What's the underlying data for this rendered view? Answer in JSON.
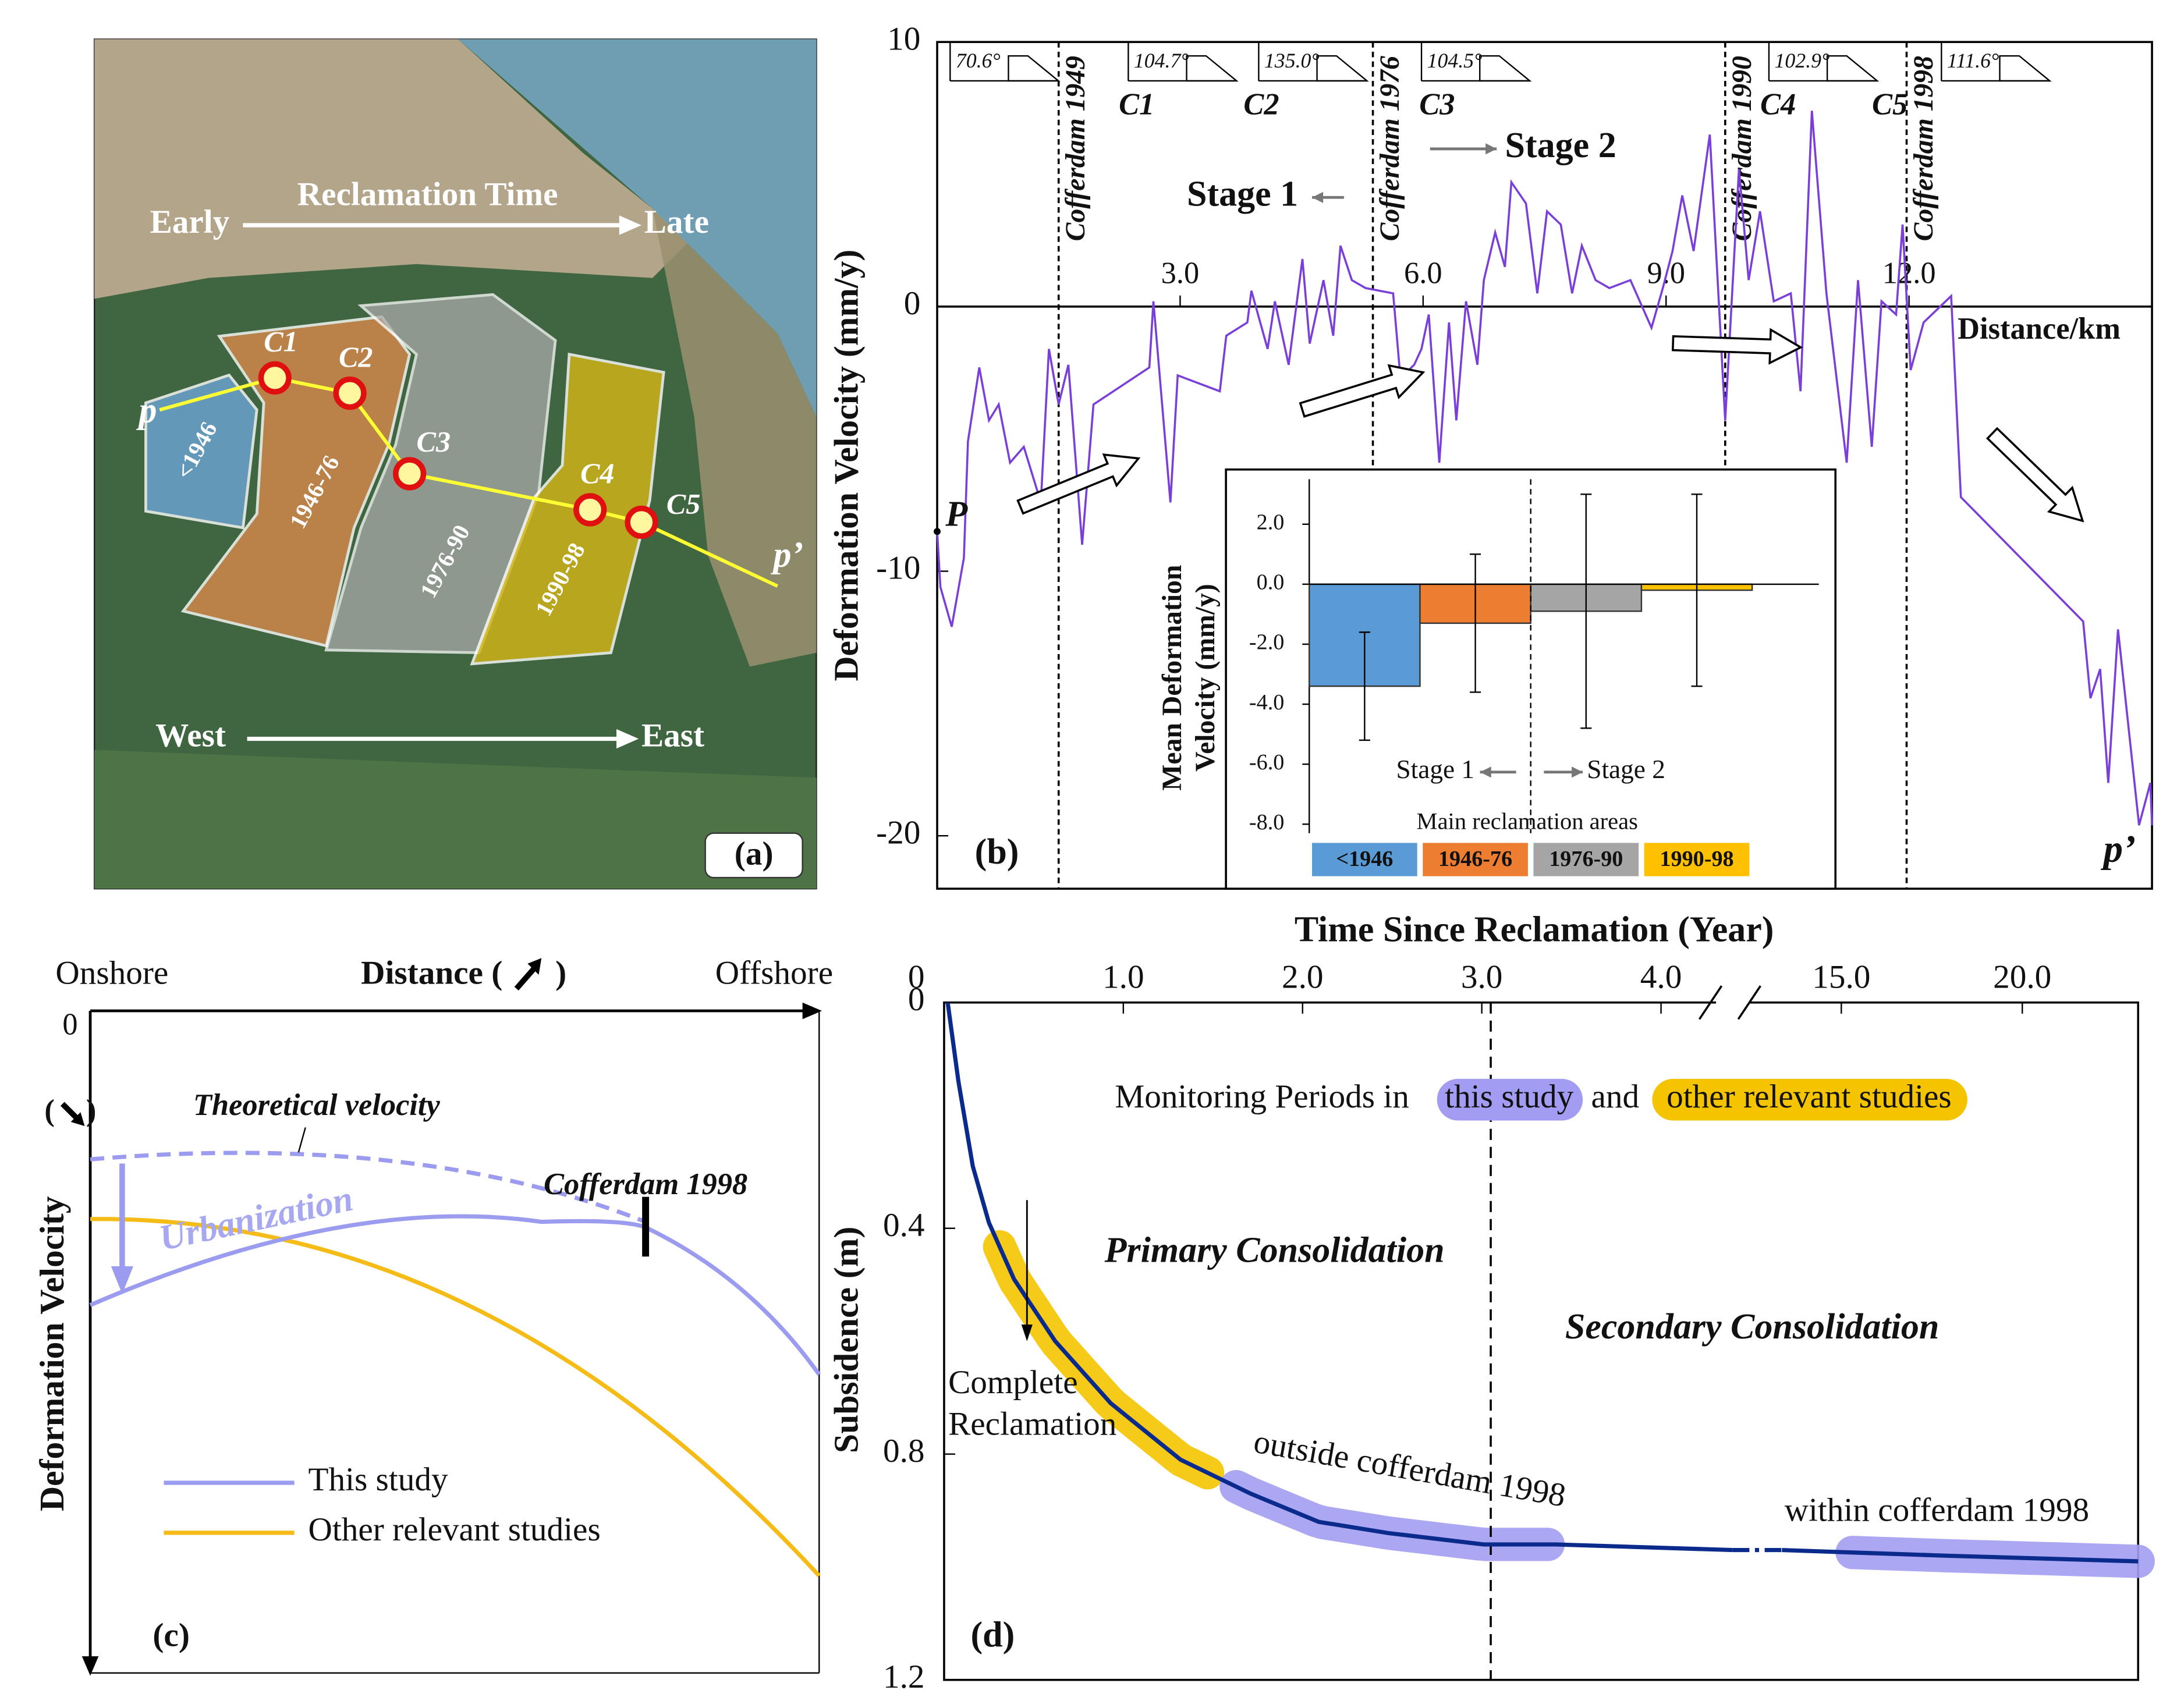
{
  "panel_a": {
    "reclamation_time": "Reclamation Time",
    "early": "Early",
    "late": "Late",
    "west": "West",
    "east": "East",
    "areas": [
      "<1946",
      "1946-76",
      "1976-90",
      "1990-98"
    ],
    "sections": [
      "C1",
      "C2",
      "C3",
      "C4",
      "C5"
    ],
    "start": "p",
    "end": "p’",
    "panel": "(a)"
  },
  "panel_c": {
    "onshore": "Onshore",
    "distance": "Distance (",
    "close": ")",
    "offshore": "Offshore",
    "zero": "0",
    "vel_open": "(",
    "vel_close": ")",
    "ylabel": "Deformation Velocity",
    "theoretical": "Theoretical velocity",
    "urbanization": "Urbanization",
    "cofferdam": "Cofferdam 1998",
    "legend": [
      "This study",
      "Other relevant studies"
    ],
    "legend_colors": [
      "#9b9bf0",
      "#f5bb16"
    ],
    "panel": "(c)"
  },
  "chart_data": [
    {
      "type": "line",
      "panel": "(b)",
      "ylabel": "Deformation Velocity (mm/y)",
      "xlabel": "Distance/km",
      "start_label": "P",
      "end_label": "p’",
      "stages": [
        "Stage 1",
        "Stage 2"
      ],
      "xlim": [
        0,
        15.0
      ],
      "ylim": [
        -22,
        10
      ],
      "xticks": [
        {
          "value": 3,
          "label": "3.0"
        },
        {
          "value": 6,
          "label": "6.0"
        },
        {
          "value": 9,
          "label": "9.0"
        },
        {
          "value": 12,
          "label": "12.0"
        }
      ],
      "yticks": [
        -20,
        -10,
        0,
        10
      ],
      "x": [
        0.0,
        0.04,
        0.18,
        0.33,
        0.38,
        0.52,
        0.64,
        0.76,
        0.9,
        1.07,
        1.28,
        1.38,
        1.5,
        1.62,
        1.79,
        1.93,
        2.62,
        2.67,
        2.88,
        2.97,
        3.49,
        3.57,
        3.83,
        3.88,
        4.08,
        4.17,
        4.34,
        4.51,
        4.6,
        4.77,
        4.89,
        4.98,
        5.12,
        5.29,
        5.63,
        5.72,
        5.89,
        5.98,
        6.07,
        6.2,
        6.32,
        6.41,
        6.53,
        6.67,
        6.75,
        6.89,
        7.01,
        7.09,
        7.27,
        7.41,
        7.53,
        7.7,
        7.84,
        7.96,
        8.13,
        8.3,
        8.56,
        8.82,
        8.96,
        9.08,
        9.2,
        9.34,
        9.54,
        9.73,
        9.9,
        10.02,
        10.16,
        10.33,
        10.54,
        10.66,
        10.8,
        10.98,
        11.23,
        11.37,
        11.54,
        11.66,
        11.84,
        11.92,
        12.02,
        12.18,
        12.52,
        12.64,
        14.15,
        14.24,
        14.36,
        14.46,
        14.58,
        14.84,
        14.98,
        15.0
      ],
      "series": [
        {
          "color": "#7b3fd9",
          "values": [
            -8.5,
            -10.6,
            -12.1,
            -9.5,
            -5.1,
            -2.3,
            -4.3,
            -3.7,
            -5.9,
            -5.3,
            -7.4,
            -1.6,
            -3.7,
            -2.2,
            -9.0,
            -3.7,
            -2.3,
            0.2,
            -7.4,
            -2.6,
            -3.2,
            -1.1,
            -0.6,
            0.6,
            -1.6,
            0.2,
            -2.2,
            1.8,
            -1.4,
            1.0,
            -1.1,
            2.3,
            1.0,
            0.7,
            0.5,
            -2.7,
            -2.2,
            -1.6,
            -0.3,
            -5.9,
            -0.6,
            -4.3,
            0.2,
            -2.2,
            1.0,
            2.8,
            1.5,
            4.7,
            3.9,
            0.5,
            3.6,
            3.1,
            0.5,
            2.3,
            1.0,
            0.7,
            1.0,
            -0.8,
            0.7,
            2.1,
            4.2,
            2.1,
            6.5,
            -4.3,
            5.2,
            1.0,
            3.6,
            0.2,
            0.5,
            -3.2,
            7.4,
            0.5,
            -5.9,
            1.0,
            -5.3,
            0.2,
            -0.3,
            3.1,
            -2.4,
            -0.6,
            0.4,
            -7.2,
            -11.9,
            -14.8,
            -13.7,
            -18.0,
            -12.2,
            -19.6,
            -18.0,
            -19.6
          ]
        }
      ],
      "cofferdams": [
        {
          "label": "Cofferdam 1949",
          "x": 1.5
        },
        {
          "label": "Cofferdam 1976",
          "x": 5.38
        },
        {
          "label": "Cofferdam 1990",
          "x": 9.73
        },
        {
          "label": "Cofferdam 1998",
          "x": 11.97
        }
      ],
      "sections": [
        {
          "label": "C1",
          "x": 2.36
        },
        {
          "label": "C2",
          "x": 3.9
        },
        {
          "label": "C3",
          "x": 6.07
        },
        {
          "label": "C4",
          "x": 10.28
        },
        {
          "label": "C5",
          "x": 11.66
        }
      ],
      "angles": [
        {
          "label": "70.6°",
          "x": 0.16
        },
        {
          "label": "104.7°",
          "x": 2.36
        },
        {
          "label": "135.0°",
          "x": 3.97
        },
        {
          "label": "104.5°",
          "x": 5.98
        },
        {
          "label": "102.9°",
          "x": 10.27
        },
        {
          "label": "111.6°",
          "x": 12.4
        }
      ]
    },
    {
      "type": "bar",
      "ylabel": [
        "Mean Deformation",
        "Velocity (mm/y)"
      ],
      "xlabel": "Main reclamation areas",
      "stages": [
        "Stage 1",
        "Stage 2"
      ],
      "categories": [
        "<1946",
        "1946-76",
        "1976-90",
        "1990-98"
      ],
      "values": [
        -3.4,
        -1.3,
        -0.9,
        -0.2
      ],
      "errors": [
        1.8,
        2.3,
        3.9,
        3.2
      ],
      "colors": [
        "#5b9bd5",
        "#ed7d31",
        "#a5a5a5",
        "#ffc000"
      ],
      "ylim": [
        -8.3,
        3.5
      ],
      "yticks": [
        {
          "value": 2,
          "label": "2.0"
        },
        {
          "value": 0,
          "label": "0.0"
        },
        {
          "value": -2,
          "label": "-2.0"
        },
        {
          "value": -4,
          "label": "-4.0"
        },
        {
          "value": -6,
          "label": "-6.0"
        },
        {
          "value": -8,
          "label": "-8.0"
        }
      ]
    },
    {
      "type": "line",
      "panel": "(d)",
      "xlabel": "Time Since Reclamation (Year)",
      "ylabel": "Subsidence (m)",
      "xlim": [
        0,
        23.2
      ],
      "xbreak": [
        4.4,
        12.0
      ],
      "ylim": [
        0,
        1.2
      ],
      "xticks": [
        0,
        {
          "value": 1,
          "label": "1.0"
        },
        {
          "value": 2,
          "label": "2.0"
        },
        {
          "value": 3,
          "label": "3.0"
        },
        {
          "value": 4,
          "label": "4.0"
        },
        {
          "value": 15,
          "label": "15.0"
        },
        {
          "value": 20,
          "label": "20.0"
        }
      ],
      "yticks": [
        0,
        0.4,
        0.8,
        1.2
      ],
      "x": [
        0.02,
        0.08,
        0.16,
        0.25,
        0.39,
        0.62,
        0.93,
        1.32,
        1.71,
        2.09,
        2.48,
        3.01,
        3.41,
        4.4,
        13.36,
        17.9,
        23.2
      ],
      "series": [
        {
          "color": "#0a2a8c",
          "values": [
            0,
            0.14,
            0.29,
            0.39,
            0.49,
            0.6,
            0.71,
            0.81,
            0.87,
            0.92,
            0.94,
            0.96,
            0.96,
            0.97,
            0.97,
            0.98,
            0.99
          ]
        }
      ],
      "divider_x": 3.05,
      "complete_x": 0.23,
      "bands": [
        {
          "color": "#f5c400",
          "range": [
            0.31,
            1.47
          ]
        },
        {
          "label": "outside cofferdam 1998",
          "color": "#a29df2",
          "range": [
            1.63,
            3.37
          ]
        },
        {
          "label": "within cofferdam 1998",
          "color": "#a29df2",
          "range": [
            15.3,
            23.2
          ]
        }
      ],
      "annotations": {
        "monitoring": "Monitoring Periods in",
        "this_study": "this study",
        "and": "and",
        "other": "other relevant studies",
        "primary": "Primary Consolidation",
        "secondary": "Secondary Consolidation",
        "complete": [
          "Complete",
          "Reclamation"
        ]
      }
    }
  ]
}
